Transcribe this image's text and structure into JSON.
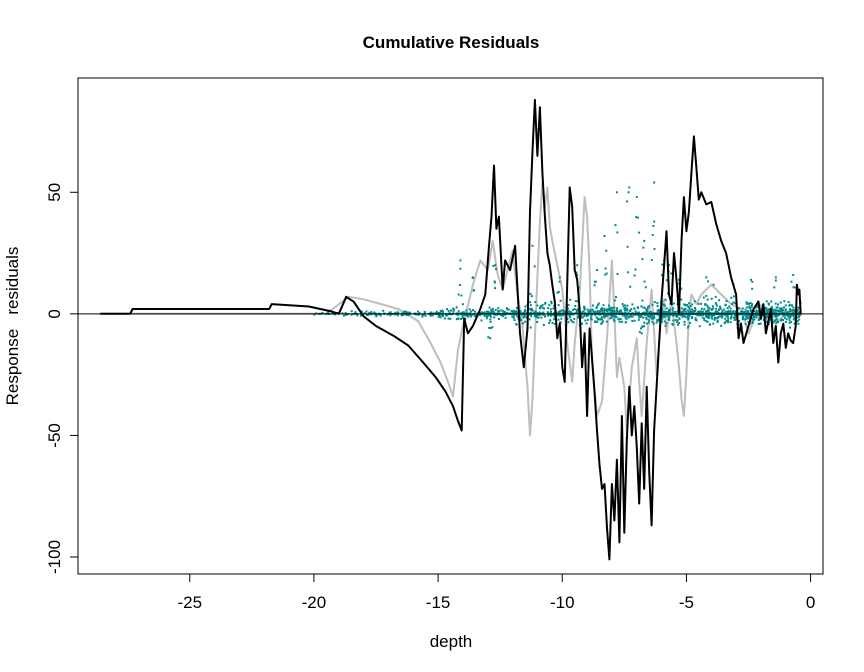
{
  "chart_data": {
    "type": "line",
    "title": "Cumulative Residuals",
    "xlabel": "depth",
    "ylabel": "Response   residuals",
    "xlim": [
      -29.5,
      0.5
    ],
    "ylim": [
      -107,
      97
    ],
    "xticks": [
      -25,
      -20,
      -15,
      -10,
      -5,
      0
    ],
    "yticks": [
      -100,
      -50,
      0,
      50
    ],
    "x_tick_labels": [
      "-25",
      "-20",
      "-15",
      "-10",
      "-5",
      "0"
    ],
    "y_tick_labels": [
      "-100",
      "-50",
      "0",
      "50"
    ],
    "reference_line": 0,
    "grid": false,
    "legend": "none",
    "colors": {
      "observed": "#000000",
      "simulated": "#bebebe",
      "points": "#008b8b",
      "axis": "#000000"
    },
    "series": [
      {
        "role": "observed",
        "values": [
          [
            -28.6,
            0
          ],
          [
            -27.4,
            0
          ],
          [
            -27.3,
            2
          ],
          [
            -21.8,
            2
          ],
          [
            -21.7,
            4
          ],
          [
            -20.2,
            3
          ],
          [
            -19.3,
            1
          ],
          [
            -19.0,
            0
          ],
          [
            -18.7,
            7
          ],
          [
            -18.4,
            5
          ],
          [
            -18.0,
            -1
          ],
          [
            -17.5,
            -5
          ],
          [
            -16.8,
            -9
          ],
          [
            -16.2,
            -13
          ],
          [
            -15.6,
            -20
          ],
          [
            -15.1,
            -26
          ],
          [
            -14.7,
            -32
          ],
          [
            -14.4,
            -38
          ],
          [
            -14.2,
            -44
          ],
          [
            -14.05,
            -48
          ],
          [
            -13.95,
            -2
          ],
          [
            -13.8,
            -8
          ],
          [
            -13.6,
            -5
          ],
          [
            -13.3,
            2
          ],
          [
            -13.1,
            8
          ],
          [
            -12.95,
            28
          ],
          [
            -12.85,
            40
          ],
          [
            -12.75,
            61
          ],
          [
            -12.65,
            35
          ],
          [
            -12.55,
            40
          ],
          [
            -12.4,
            10
          ],
          [
            -12.3,
            22
          ],
          [
            -12.1,
            18
          ],
          [
            -11.9,
            28
          ],
          [
            -11.8,
            10
          ],
          [
            -11.7,
            -8
          ],
          [
            -11.55,
            -22
          ],
          [
            -11.4,
            -6
          ],
          [
            -11.3,
            42
          ],
          [
            -11.2,
            67
          ],
          [
            -11.1,
            88
          ],
          [
            -11.0,
            65
          ],
          [
            -10.9,
            85
          ],
          [
            -10.8,
            58
          ],
          [
            -10.7,
            40
          ],
          [
            -10.6,
            25
          ],
          [
            -10.5,
            20
          ],
          [
            -10.4,
            12
          ],
          [
            -10.3,
            5
          ],
          [
            -10.2,
            -10
          ],
          [
            -10.1,
            -4
          ],
          [
            -10.0,
            -22
          ],
          [
            -9.9,
            -28
          ],
          [
            -9.7,
            52
          ],
          [
            -9.6,
            44
          ],
          [
            -9.5,
            18
          ],
          [
            -9.4,
            14
          ],
          [
            -9.3,
            2
          ],
          [
            -9.2,
            -22
          ],
          [
            -9.1,
            -8
          ],
          [
            -9.0,
            -42
          ],
          [
            -8.9,
            -6
          ],
          [
            -8.8,
            -18
          ],
          [
            -8.7,
            -32
          ],
          [
            -8.6,
            -48
          ],
          [
            -8.5,
            -62
          ],
          [
            -8.4,
            -72
          ],
          [
            -8.3,
            -70
          ],
          [
            -8.2,
            -88
          ],
          [
            -8.1,
            -101
          ],
          [
            -8.0,
            -70
          ],
          [
            -7.9,
            -85
          ],
          [
            -7.8,
            -60
          ],
          [
            -7.7,
            -94
          ],
          [
            -7.6,
            -42
          ],
          [
            -7.5,
            -90
          ],
          [
            -7.4,
            -52
          ],
          [
            -7.3,
            -30
          ],
          [
            -7.2,
            -50
          ],
          [
            -7.1,
            -38
          ],
          [
            -7.0,
            -55
          ],
          [
            -6.9,
            -78
          ],
          [
            -6.8,
            -45
          ],
          [
            -6.7,
            -72
          ],
          [
            -6.6,
            -30
          ],
          [
            -6.5,
            -65
          ],
          [
            -6.4,
            -87
          ],
          [
            -6.3,
            -48
          ],
          [
            -6.2,
            -30
          ],
          [
            -6.1,
            -12
          ],
          [
            -6.0,
            6
          ],
          [
            -5.9,
            20
          ],
          [
            -5.8,
            34
          ],
          [
            -5.7,
            8
          ],
          [
            -5.6,
            4
          ],
          [
            -5.5,
            25
          ],
          [
            -5.4,
            14
          ],
          [
            -5.3,
            0
          ],
          [
            -5.2,
            30
          ],
          [
            -5.1,
            48
          ],
          [
            -5.0,
            34
          ],
          [
            -4.9,
            42
          ],
          [
            -4.8,
            58
          ],
          [
            -4.7,
            73
          ],
          [
            -4.6,
            60
          ],
          [
            -4.5,
            47
          ],
          [
            -4.4,
            50
          ],
          [
            -4.2,
            45
          ],
          [
            -4.0,
            46
          ],
          [
            -3.8,
            37
          ],
          [
            -3.6,
            30
          ],
          [
            -3.4,
            25
          ],
          [
            -3.2,
            15
          ],
          [
            -3.0,
            8
          ],
          [
            -2.9,
            -10
          ],
          [
            -2.8,
            -4
          ],
          [
            -2.7,
            -12
          ],
          [
            -2.5,
            -5
          ],
          [
            -2.3,
            2
          ],
          [
            -2.1,
            5
          ],
          [
            -2.0,
            -2
          ],
          [
            -1.9,
            4
          ],
          [
            -1.8,
            -8
          ],
          [
            -1.7,
            -3
          ],
          [
            -1.6,
            2
          ],
          [
            -1.5,
            -12
          ],
          [
            -1.4,
            -5
          ],
          [
            -1.3,
            -20
          ],
          [
            -1.2,
            -8
          ],
          [
            -1.1,
            -4
          ],
          [
            -1.0,
            -14
          ],
          [
            -0.9,
            -8
          ],
          [
            -0.8,
            -11
          ],
          [
            -0.7,
            -12
          ],
          [
            -0.6,
            -5
          ],
          [
            -0.55,
            12
          ],
          [
            -0.5,
            8
          ],
          [
            -0.45,
            10
          ],
          [
            -0.4,
            0
          ]
        ]
      },
      {
        "role": "simulated",
        "values": [
          [
            -28.6,
            0
          ],
          [
            -21.5,
            0
          ],
          [
            -20.5,
            0
          ],
          [
            -19.5,
            0
          ],
          [
            -18.6,
            7
          ],
          [
            -18.0,
            6
          ],
          [
            -17.3,
            4
          ],
          [
            -16.6,
            2
          ],
          [
            -15.8,
            -3
          ],
          [
            -15.3,
            -12
          ],
          [
            -14.9,
            -20
          ],
          [
            -14.6,
            -28
          ],
          [
            -14.4,
            -34
          ],
          [
            -14.2,
            -15
          ],
          [
            -14.0,
            -5
          ],
          [
            -13.6,
            12
          ],
          [
            -13.3,
            22
          ],
          [
            -13.0,
            18
          ],
          [
            -12.8,
            30
          ],
          [
            -12.6,
            16
          ],
          [
            -12.4,
            10
          ],
          [
            -12.2,
            18
          ],
          [
            -12.0,
            26
          ],
          [
            -11.8,
            8
          ],
          [
            -11.6,
            -5
          ],
          [
            -11.5,
            -18
          ],
          [
            -11.4,
            -30
          ],
          [
            -11.3,
            -50
          ],
          [
            -11.2,
            -35
          ],
          [
            -11.1,
            -10
          ],
          [
            -11.0,
            15
          ],
          [
            -10.9,
            38
          ],
          [
            -10.8,
            54
          ],
          [
            -10.7,
            44
          ],
          [
            -10.6,
            52
          ],
          [
            -10.5,
            36
          ],
          [
            -10.4,
            30
          ],
          [
            -10.2,
            20
          ],
          [
            -10.0,
            10
          ],
          [
            -9.8,
            -12
          ],
          [
            -9.6,
            -28
          ],
          [
            -9.5,
            -12
          ],
          [
            -9.3,
            8
          ],
          [
            -9.2,
            28
          ],
          [
            -9.1,
            48
          ],
          [
            -9.0,
            40
          ],
          [
            -8.9,
            18
          ],
          [
            -8.8,
            -20
          ],
          [
            -8.6,
            -42
          ],
          [
            -8.4,
            -36
          ],
          [
            -8.2,
            -10
          ],
          [
            -8.0,
            22
          ],
          [
            -7.9,
            0
          ],
          [
            -7.8,
            -26
          ],
          [
            -7.7,
            -18
          ],
          [
            -7.5,
            -30
          ],
          [
            -7.4,
            -48
          ],
          [
            -7.2,
            -22
          ],
          [
            -7.0,
            -10
          ],
          [
            -6.9,
            -28
          ],
          [
            -6.8,
            -42
          ],
          [
            -6.6,
            -12
          ],
          [
            -6.4,
            10
          ],
          [
            -6.2,
            -25
          ],
          [
            -6.0,
            0
          ],
          [
            -5.9,
            6
          ],
          [
            -5.8,
            -8
          ],
          [
            -5.6,
            5
          ],
          [
            -5.4,
            -12
          ],
          [
            -5.3,
            -22
          ],
          [
            -5.2,
            -35
          ],
          [
            -5.1,
            -42
          ],
          [
            -5.0,
            -25
          ],
          [
            -4.9,
            0
          ],
          [
            -4.8,
            8
          ],
          [
            -4.6,
            4
          ],
          [
            -4.4,
            8
          ],
          [
            -4.0,
            12
          ],
          [
            -3.6,
            8
          ],
          [
            -3.2,
            4
          ],
          [
            -2.8,
            2
          ],
          [
            -2.5,
            -8
          ],
          [
            -2.3,
            -3
          ],
          [
            -2.1,
            5
          ],
          [
            -1.9,
            0
          ],
          [
            -1.7,
            -4
          ],
          [
            -1.5,
            2
          ],
          [
            -1.3,
            -3
          ],
          [
            -1.0,
            0
          ],
          [
            -0.6,
            2
          ],
          [
            -0.4,
            0
          ]
        ]
      }
    ],
    "points": {
      "role": "residuals",
      "x_range": [
        -20,
        -0.4
      ],
      "peaks": [
        [
          -14.1,
          22
        ],
        [
          -13.6,
          15
        ],
        [
          -12.9,
          -10
        ],
        [
          -12.7,
          20
        ],
        [
          -11.2,
          28
        ],
        [
          -10.1,
          15
        ],
        [
          -9.4,
          20
        ],
        [
          -8.6,
          18
        ],
        [
          -8.3,
          32
        ],
        [
          -7.8,
          50
        ],
        [
          -7.3,
          52
        ],
        [
          -7.0,
          48
        ],
        [
          -6.8,
          -8
        ],
        [
          -6.7,
          30
        ],
        [
          -6.3,
          54
        ],
        [
          -5.9,
          22
        ],
        [
          -5.7,
          20
        ],
        [
          -5.3,
          14
        ],
        [
          -4.2,
          15
        ],
        [
          -3.9,
          12
        ],
        [
          -3.1,
          12
        ],
        [
          -2.4,
          14
        ],
        [
          -1.4,
          15
        ],
        [
          -0.7,
          16
        ]
      ]
    }
  }
}
